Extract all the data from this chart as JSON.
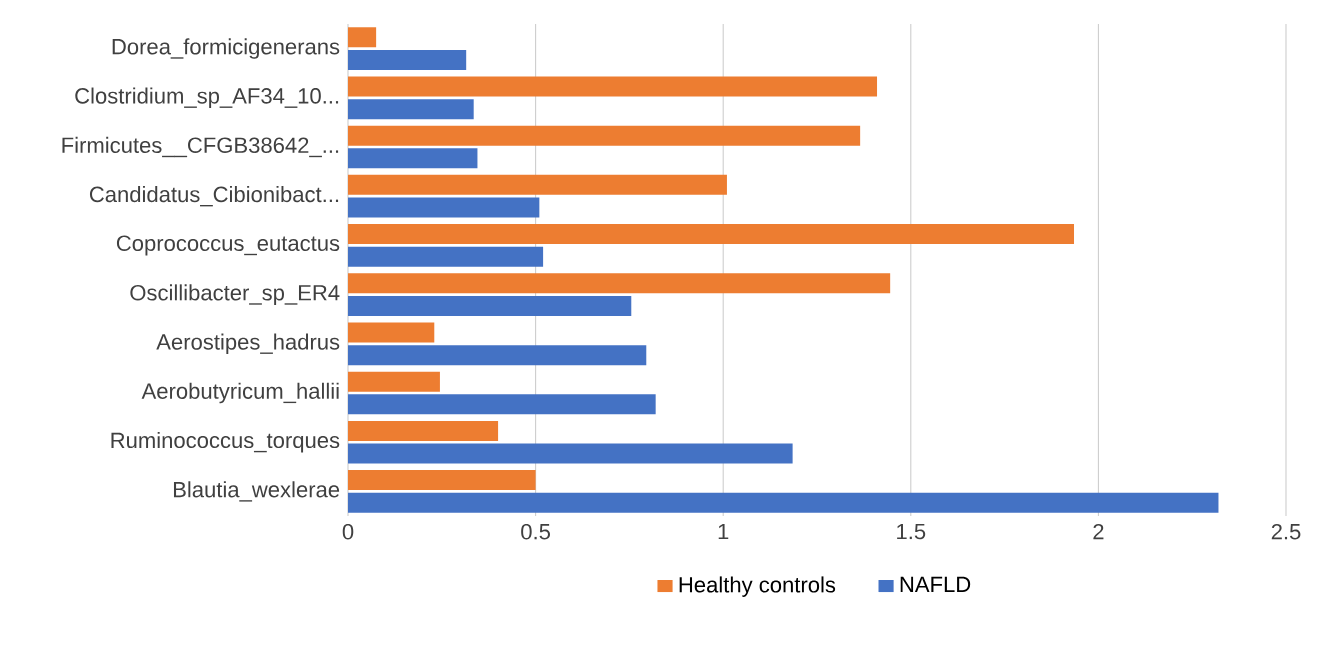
{
  "chart_data": {
    "type": "bar",
    "orientation": "horizontal",
    "categories": [
      "Dorea_formicigenerans",
      "Clostridium_sp_AF34_10...",
      "Firmicutes__CFGB38642_...",
      "Candidatus_Cibionibact...",
      "Coprococcus_eutactus",
      "Oscillibacter_sp_ER4",
      "Aerostipes_hadrus",
      "Aerobutyricum_hallii",
      "Ruminococcus_torques",
      "Blautia_wexlerae"
    ],
    "series": [
      {
        "name": "Healthy controls",
        "color": "#ed7d31",
        "values": [
          0.075,
          1.41,
          1.365,
          1.01,
          1.935,
          1.445,
          0.23,
          0.245,
          0.4,
          0.5
        ]
      },
      {
        "name": "NAFLD",
        "color": "#4472c4",
        "values": [
          0.315,
          0.335,
          0.345,
          0.51,
          0.52,
          0.755,
          0.795,
          0.82,
          1.185,
          2.32
        ]
      }
    ],
    "xlim": [
      0,
      2.5
    ],
    "xticks": [
      0,
      0.5,
      1,
      1.5,
      2,
      2.5
    ],
    "grid": "x",
    "legend": "bottom"
  }
}
